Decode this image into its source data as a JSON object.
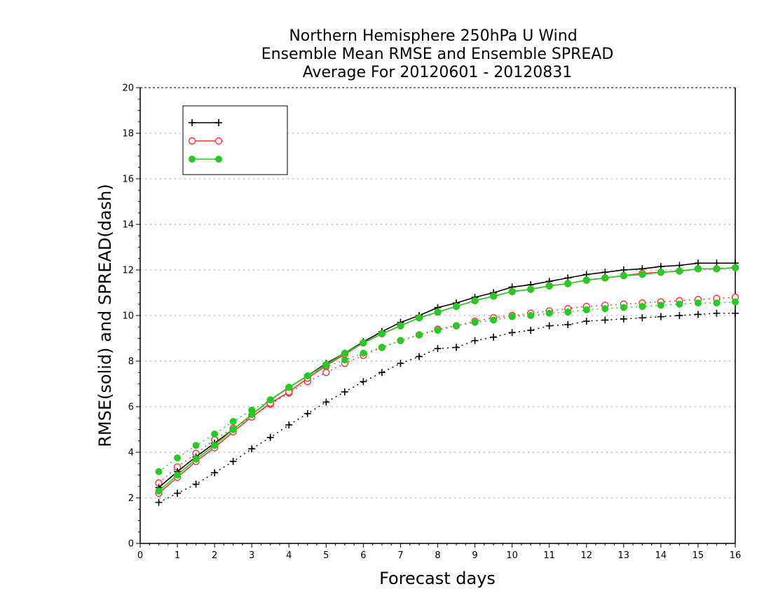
{
  "chart_data": {
    "type": "line",
    "title_lines": [
      "Northern Hemisphere 250hPa U Wind",
      "Ensemble Mean RMSE and Ensemble SPREAD",
      "Average For 20120601 - 20120831"
    ],
    "xlabel": "Forecast days",
    "ylabel": "RMSE(solid) and SPREAD(dash)",
    "xlim": [
      0,
      16
    ],
    "ylim": [
      0,
      20
    ],
    "xticks": [
      0,
      1,
      2,
      3,
      4,
      5,
      6,
      7,
      8,
      9,
      10,
      11,
      12,
      13,
      14,
      15,
      16
    ],
    "yticks": [
      0,
      2,
      4,
      6,
      8,
      10,
      12,
      14,
      16,
      18,
      20
    ],
    "grid": "horizontal dotted",
    "legend_position": "top-left",
    "x": [
      0.5,
      1,
      1.5,
      2,
      2.5,
      3,
      3.5,
      4,
      4.5,
      5,
      5.5,
      6,
      6.5,
      7,
      7.5,
      8,
      8.5,
      9,
      9.5,
      10,
      10.5,
      11,
      11.5,
      12,
      12.5,
      13,
      13.5,
      14,
      14.5,
      15,
      15.5,
      16
    ],
    "series": [
      {
        "name": "",
        "color": "#000000",
        "marker": "plus",
        "rmse": [
          2.45,
          3.15,
          3.8,
          4.4,
          5.0,
          5.65,
          6.3,
          6.85,
          7.35,
          7.9,
          8.35,
          8.85,
          9.3,
          9.7,
          10.0,
          10.35,
          10.55,
          10.8,
          11.0,
          11.25,
          11.35,
          11.5,
          11.65,
          11.8,
          11.9,
          12.0,
          12.05,
          12.15,
          12.2,
          12.3,
          12.3,
          12.3
        ],
        "spread": [
          1.8,
          2.2,
          2.6,
          3.1,
          3.6,
          4.15,
          4.65,
          5.2,
          5.7,
          6.2,
          6.65,
          7.1,
          7.5,
          7.9,
          8.2,
          8.55,
          8.6,
          8.9,
          9.05,
          9.25,
          9.35,
          9.55,
          9.6,
          9.75,
          9.8,
          9.85,
          9.9,
          9.95,
          10.0,
          10.05,
          10.1,
          10.1
        ]
      },
      {
        "name": "",
        "color": "#ff3333",
        "marker": "open-circle",
        "rmse": [
          2.2,
          2.9,
          3.6,
          4.2,
          4.9,
          5.55,
          6.15,
          6.65,
          7.25,
          7.8,
          8.3,
          8.8,
          9.2,
          9.55,
          9.9,
          10.15,
          10.4,
          10.65,
          10.85,
          11.05,
          11.15,
          11.3,
          11.4,
          11.55,
          11.65,
          11.75,
          11.85,
          11.9,
          11.95,
          12.05,
          12.05,
          12.1
        ],
        "spread": [
          2.65,
          3.35,
          3.95,
          4.55,
          5.05,
          5.55,
          6.1,
          6.6,
          7.1,
          7.5,
          7.9,
          8.25,
          8.6,
          8.9,
          9.15,
          9.4,
          9.55,
          9.75,
          9.9,
          10.0,
          10.1,
          10.2,
          10.3,
          10.4,
          10.45,
          10.5,
          10.55,
          10.6,
          10.65,
          10.7,
          10.75,
          10.8
        ]
      },
      {
        "name": "",
        "color": "#22cc22",
        "marker": "filled-circle",
        "rmse": [
          2.3,
          3.0,
          3.7,
          4.3,
          5.0,
          5.65,
          6.3,
          6.85,
          7.35,
          7.85,
          8.35,
          8.8,
          9.2,
          9.55,
          9.9,
          10.15,
          10.4,
          10.65,
          10.85,
          11.05,
          11.15,
          11.3,
          11.4,
          11.55,
          11.65,
          11.75,
          11.8,
          11.9,
          11.95,
          12.05,
          12.05,
          12.1
        ],
        "spread": [
          3.15,
          3.75,
          4.3,
          4.8,
          5.35,
          5.85,
          6.3,
          6.85,
          7.35,
          7.75,
          8.05,
          8.35,
          8.6,
          8.9,
          9.15,
          9.35,
          9.55,
          9.7,
          9.8,
          9.95,
          10.0,
          10.1,
          10.15,
          10.25,
          10.3,
          10.35,
          10.4,
          10.45,
          10.5,
          10.55,
          10.55,
          10.6
        ]
      }
    ]
  }
}
